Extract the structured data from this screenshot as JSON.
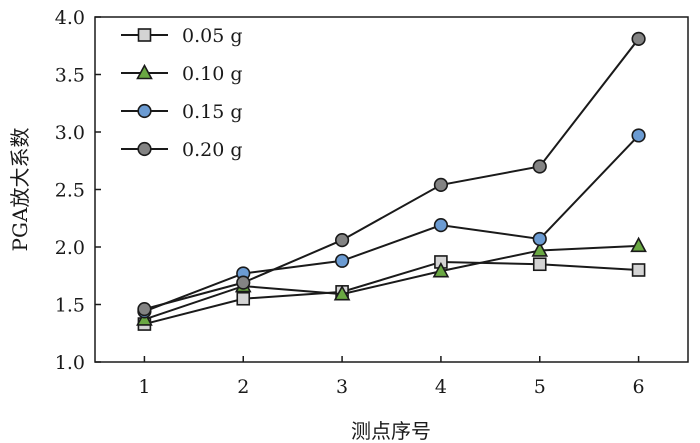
{
  "chart_data": {
    "type": "line",
    "x": [
      1,
      2,
      3,
      4,
      5,
      6
    ],
    "xticks": [
      "1",
      "2",
      "3",
      "4",
      "5",
      "6"
    ],
    "xlim": [
      0.5,
      6.5
    ],
    "ylim": [
      1.0,
      4.0
    ],
    "yticks": [
      "1.0",
      "1.5",
      "2.0",
      "2.5",
      "3.0",
      "3.5",
      "4.0"
    ],
    "xlabel": "测点序号",
    "ylabel": "PGA放大系数",
    "legend_position": "top-left",
    "grid": false,
    "series": [
      {
        "name": "0.05 g",
        "marker": "square",
        "color": "#d4d4d4",
        "values": [
          1.33,
          1.55,
          1.61,
          1.87,
          1.85,
          1.8
        ]
      },
      {
        "name": "0.10 g",
        "marker": "triangle",
        "color": "#6aa843",
        "values": [
          1.37,
          1.66,
          1.59,
          1.79,
          1.97,
          2.01
        ]
      },
      {
        "name": "0.15 g",
        "marker": "circle",
        "color": "#6b9bd2",
        "values": [
          1.44,
          1.77,
          1.88,
          2.19,
          2.07,
          2.97
        ]
      },
      {
        "name": "0.20 g",
        "marker": "circle",
        "color": "#838383",
        "values": [
          1.46,
          1.69,
          2.06,
          2.54,
          2.7,
          3.81
        ]
      }
    ]
  }
}
